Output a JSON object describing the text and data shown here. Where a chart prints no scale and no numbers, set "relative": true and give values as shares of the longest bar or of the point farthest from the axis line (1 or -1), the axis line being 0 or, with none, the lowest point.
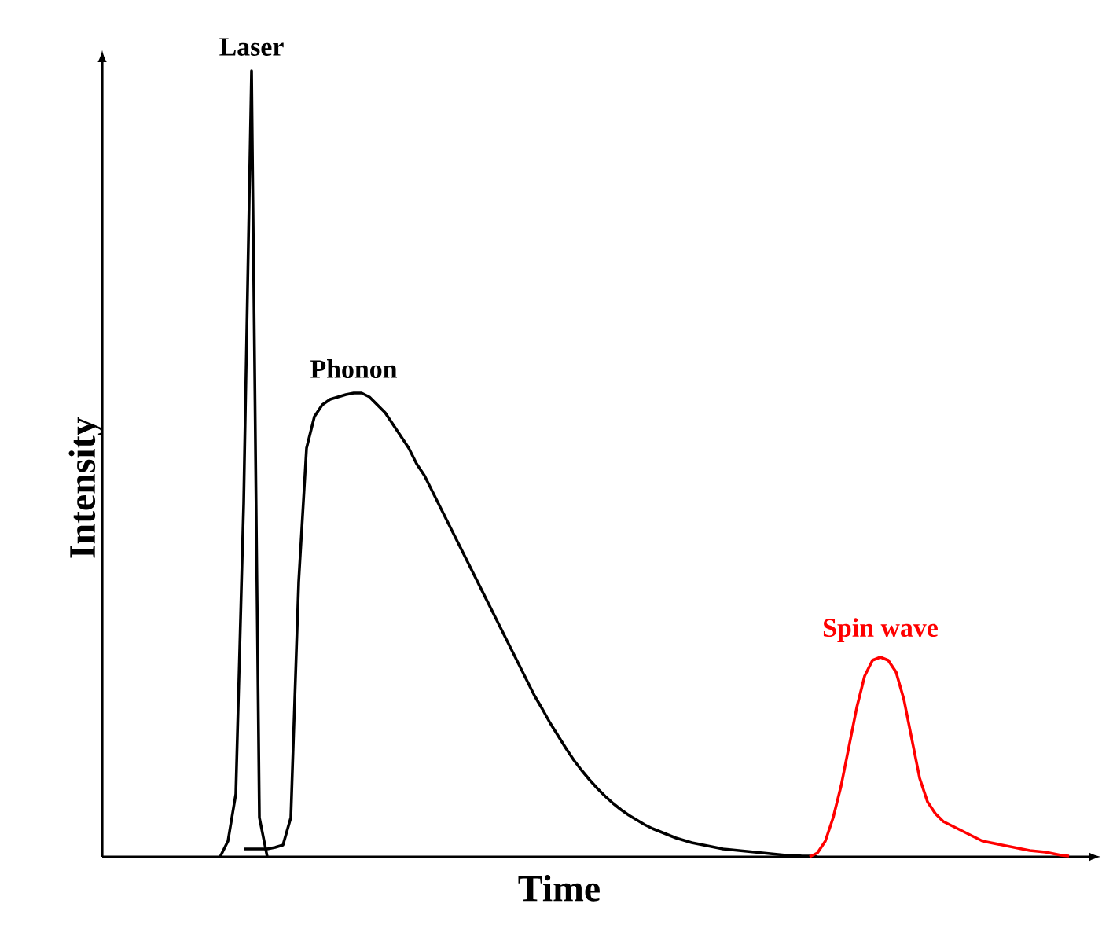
{
  "chart_data": {
    "type": "line",
    "relative": true,
    "xlabel": "Time",
    "ylabel": "Intensity",
    "categories": [
      null,
      null,
      null,
      null,
      null,
      null,
      null,
      null,
      null,
      null,
      null,
      null,
      null,
      null,
      null,
      null,
      null,
      null,
      null,
      null,
      null,
      null,
      null,
      null,
      null,
      null,
      null,
      null,
      null,
      null,
      null,
      null,
      null,
      null,
      null,
      null,
      null,
      null,
      null,
      null,
      null,
      null,
      null,
      null,
      null,
      null,
      null,
      null,
      null,
      null,
      null,
      null,
      null,
      null,
      null,
      null,
      null,
      null,
      null,
      null,
      null,
      null,
      null,
      null,
      null,
      null,
      null,
      null,
      null,
      null,
      null,
      null,
      null,
      null,
      null,
      null,
      null,
      null,
      null,
      null,
      null,
      null,
      null,
      null,
      null,
      null,
      null,
      null,
      null,
      null,
      null,
      null,
      null,
      null,
      null,
      null,
      null,
      null,
      null,
      null,
      null,
      null,
      null,
      null,
      null,
      null,
      null,
      null,
      null,
      null,
      null,
      null,
      null,
      null,
      null,
      null,
      null,
      null,
      null,
      null,
      null,
      null,
      null,
      null,
      null,
      null
    ],
    "series": [
      {
        "name": "Laser",
        "color": "#000000",
        "values": [
          null,
          null,
          null,
          null,
          null,
          null,
          null,
          null,
          null,
          null,
          null,
          null,
          null,
          null,
          null,
          0,
          0.02,
          0.08,
          0.45,
          1,
          0.05,
          0,
          null,
          null,
          null,
          null,
          null,
          null,
          null,
          null,
          null,
          null,
          null,
          null,
          null,
          null,
          null,
          null,
          null,
          null,
          null,
          null,
          null,
          null,
          null,
          null,
          null,
          null,
          null,
          null,
          null,
          null,
          null,
          null,
          null,
          null,
          null,
          null,
          null,
          null,
          null,
          null,
          null,
          null,
          null,
          null,
          null,
          null,
          null,
          null,
          null,
          null,
          null,
          null,
          null,
          null,
          null,
          null,
          null,
          null,
          null,
          null,
          null,
          null,
          null,
          null,
          null,
          null,
          null,
          null,
          null,
          null,
          null,
          null,
          null,
          null,
          null,
          null,
          null,
          null,
          null,
          null,
          null,
          null,
          null,
          null,
          null,
          null,
          null,
          null,
          null,
          null,
          null,
          null,
          null,
          null,
          null,
          null,
          null,
          null,
          null,
          null,
          null,
          null,
          null,
          null
        ]
      },
      {
        "name": "Phonon",
        "color": "#000000",
        "values": [
          null,
          null,
          null,
          null,
          null,
          null,
          null,
          null,
          null,
          null,
          null,
          null,
          null,
          null,
          null,
          null,
          null,
          null,
          0.01,
          0.01,
          0.01,
          0.01,
          0.012,
          0.015,
          0.05,
          0.35,
          0.52,
          0.56,
          0.575,
          0.582,
          0.585,
          0.588,
          0.59,
          0.59,
          0.585,
          0.575,
          0.565,
          0.55,
          0.535,
          0.52,
          0.5,
          0.485,
          0.465,
          0.445,
          0.425,
          0.405,
          0.385,
          0.365,
          0.345,
          0.325,
          0.305,
          0.285,
          0.265,
          0.245,
          0.225,
          0.205,
          0.188,
          0.17,
          0.154,
          0.138,
          0.123,
          0.11,
          0.098,
          0.087,
          0.077,
          0.068,
          0.06,
          0.053,
          0.047,
          0.041,
          0.036,
          0.032,
          0.028,
          0.024,
          0.021,
          0.018,
          0.016,
          0.014,
          0.012,
          0.01,
          0.009,
          0.008,
          0.007,
          0.006,
          0.005,
          0.004,
          0.003,
          0.002,
          0.002,
          0.001,
          0.001,
          0,
          null,
          null,
          null,
          null,
          null,
          null,
          null,
          null,
          null,
          null,
          null,
          null,
          null,
          null,
          null,
          null,
          null,
          null,
          null,
          null,
          null,
          null,
          null,
          null,
          null,
          null,
          null,
          null,
          null,
          null,
          null,
          null,
          null,
          null
        ]
      },
      {
        "name": "Spin wave",
        "color": "#ff0000",
        "values": [
          null,
          null,
          null,
          null,
          null,
          null,
          null,
          null,
          null,
          null,
          null,
          null,
          null,
          null,
          null,
          null,
          null,
          null,
          null,
          null,
          null,
          null,
          null,
          null,
          null,
          null,
          null,
          null,
          null,
          null,
          null,
          null,
          null,
          null,
          null,
          null,
          null,
          null,
          null,
          null,
          null,
          null,
          null,
          null,
          null,
          null,
          null,
          null,
          null,
          null,
          null,
          null,
          null,
          null,
          null,
          null,
          null,
          null,
          null,
          null,
          null,
          null,
          null,
          null,
          null,
          null,
          null,
          null,
          null,
          null,
          null,
          null,
          null,
          null,
          null,
          null,
          null,
          null,
          null,
          null,
          null,
          null,
          null,
          null,
          null,
          null,
          null,
          null,
          null,
          null,
          0,
          0.005,
          0.02,
          0.05,
          0.09,
          0.14,
          0.19,
          0.23,
          0.25,
          0.254,
          0.25,
          0.235,
          0.2,
          0.15,
          0.1,
          0.07,
          0.055,
          0.045,
          0.04,
          0.035,
          0.03,
          0.025,
          0.02,
          0.018,
          0.016,
          0.014,
          0.012,
          0.01,
          0.008,
          0.007,
          0.006,
          0.004,
          0.002,
          0.001,
          null,
          null
        ]
      }
    ]
  }
}
